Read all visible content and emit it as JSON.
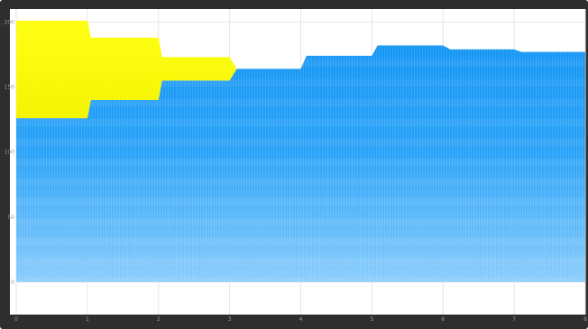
{
  "chart_data": {
    "type": "area",
    "title": "",
    "xlabel": "",
    "ylabel": "",
    "xlim": [
      0,
      8
    ],
    "ylim": [
      -25,
      210
    ],
    "grid": true,
    "x_ticks": [
      "0",
      "1",
      "2",
      "3",
      "4",
      "5",
      "6",
      "7",
      "8"
    ],
    "y_ticks": [
      "0",
      "50",
      "100",
      "150",
      "200"
    ],
    "x_tick_values": [
      0,
      1,
      2,
      3,
      4,
      5,
      6,
      7,
      8
    ],
    "y_tick_values": [
      0,
      50,
      100,
      150,
      200
    ],
    "series": [
      {
        "color": "#1a9cf5",
        "x": [
          0,
          1,
          1.05,
          2,
          2.05,
          3,
          3.1,
          4,
          4.08,
          5,
          5.08,
          6,
          6.1,
          7,
          7.1,
          8
        ],
        "values": [
          126,
          126,
          140,
          140,
          155,
          155,
          164,
          164,
          174,
          174,
          182,
          182,
          179,
          179,
          177,
          177
        ]
      },
      {
        "color": "#ffff00",
        "x": [
          0,
          1,
          1.05,
          2,
          2.05,
          3,
          3.1,
          4,
          4.08,
          5,
          5.08,
          6,
          6.1,
          7,
          7.1,
          8
        ],
        "values": [
          201,
          201,
          188,
          188,
          173,
          173,
          164,
          164,
          174,
          174,
          182,
          182,
          179,
          179,
          177,
          177
        ]
      }
    ],
    "colors": {
      "blue": "#1a9cf5",
      "yellow": "#ffff00",
      "frame": "#2e2e2e",
      "grid": "#e6e6e6"
    }
  }
}
